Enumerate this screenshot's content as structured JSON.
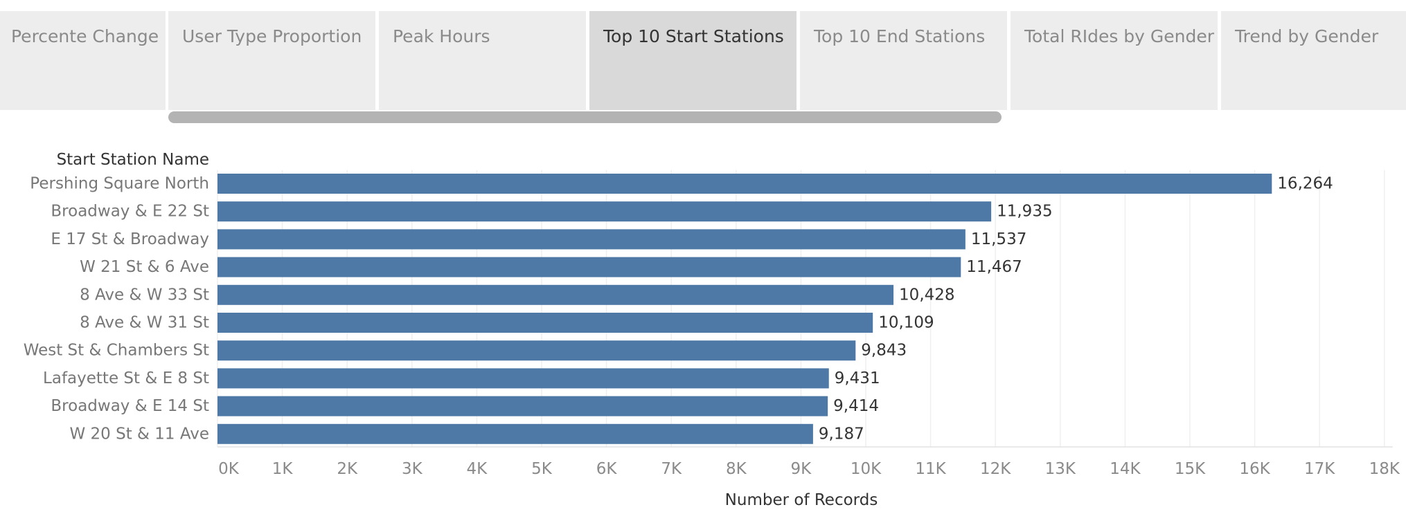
{
  "tabs": [
    {
      "label": "Percente Change",
      "active": false
    },
    {
      "label": "User Type Proportion",
      "active": false
    },
    {
      "label": "Peak Hours",
      "active": false
    },
    {
      "label": "Top 10 Start Stations",
      "active": true
    },
    {
      "label": "Top 10 End Stations",
      "active": false
    },
    {
      "label": "Total RIdes by Gender",
      "active": false
    },
    {
      "label": "Trend by Gender",
      "active": false
    }
  ],
  "colors": {
    "bar": "#4e79a7",
    "gridline": "#efefef",
    "tab_inactive": "#ededed",
    "tab_active": "#d9d9d9",
    "scrollbar": "#b3b3b3"
  },
  "chart_data": {
    "type": "bar",
    "orientation": "horizontal",
    "row_header": "Start Station Name",
    "categories": [
      "Pershing Square North",
      "Broadway & E 22 St",
      "E 17 St & Broadway",
      "W 21 St & 6 Ave",
      "8 Ave & W 33 St",
      "8 Ave & W 31 St",
      "West St & Chambers St",
      "Lafayette St & E 8 St",
      "Broadway & E 14 St",
      "W 20 St & 11 Ave"
    ],
    "values": [
      16264,
      11935,
      11537,
      11467,
      10428,
      10109,
      9843,
      9431,
      9414,
      9187
    ],
    "value_labels": [
      "16,264",
      "11,935",
      "11,537",
      "11,467",
      "10,428",
      "10,109",
      "9,843",
      "9,431",
      "9,414",
      "9,187"
    ],
    "xlabel": "Number of Records",
    "xlim": [
      0,
      18000
    ],
    "xticks": [
      0,
      1000,
      2000,
      3000,
      4000,
      5000,
      6000,
      7000,
      8000,
      9000,
      10000,
      11000,
      12000,
      13000,
      14000,
      15000,
      16000,
      17000,
      18000
    ],
    "xtick_labels": [
      "0K",
      "1K",
      "2K",
      "3K",
      "4K",
      "5K",
      "6K",
      "7K",
      "8K",
      "9K",
      "10K",
      "11K",
      "12K",
      "13K",
      "14K",
      "15K",
      "16K",
      "17K",
      "18K"
    ],
    "grid": true,
    "legend": "none"
  }
}
